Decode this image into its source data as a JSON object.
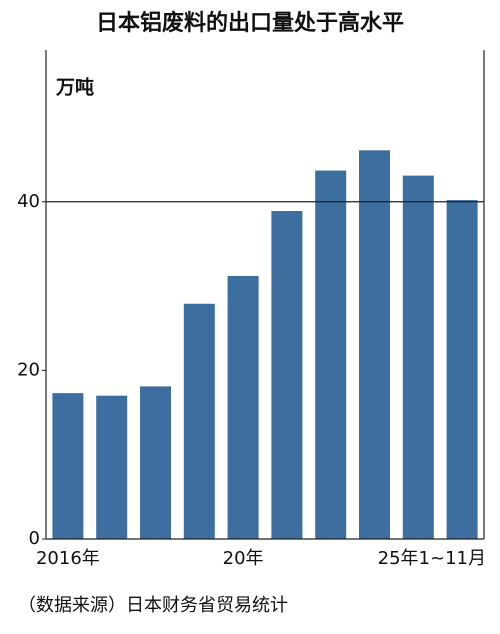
{
  "chart_data": {
    "type": "bar",
    "title": "日本铝废料的出口量处于高水平",
    "y_unit": "万吨",
    "source": "（数据来源）日本财务省贸易统计",
    "categories": [
      "2016年",
      null,
      null,
      null,
      "20年",
      null,
      null,
      null,
      null,
      "25年1~11月"
    ],
    "values": [
      17.3,
      17.0,
      18.1,
      27.9,
      31.2,
      38.9,
      43.7,
      46.1,
      43.1,
      40.2
    ],
    "color": "#3c6e9f",
    "ylim": [
      0,
      58
    ],
    "yticks": [
      0,
      20,
      40
    ],
    "reference_line": 40
  }
}
